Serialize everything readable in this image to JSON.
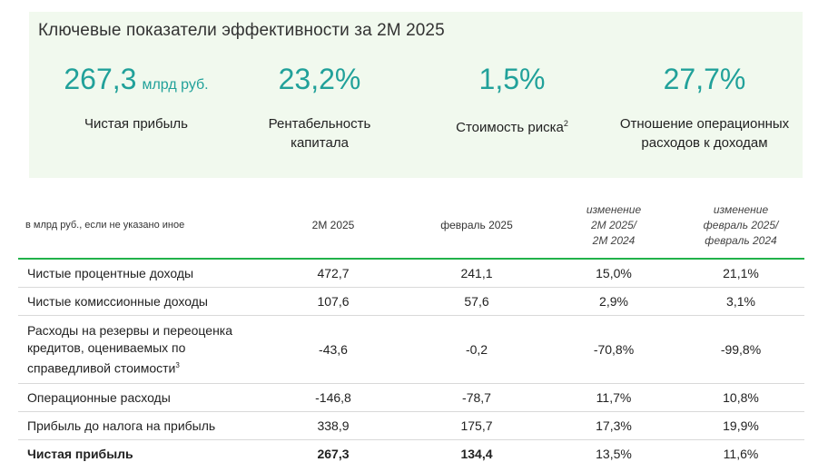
{
  "kpi_panel": {
    "title": "Ключевые показатели эффективности за 2М 2025",
    "items": [
      {
        "value": "267,3",
        "unit": "млрд руб.",
        "label": "Чистая прибыль"
      },
      {
        "value": "23,2%",
        "unit": "",
        "label": "Рентабельность\nкапитала"
      },
      {
        "value": "1,5%",
        "unit": "",
        "label": "Стоимость риска",
        "sup": "2"
      },
      {
        "value": "27,7%",
        "unit": "",
        "label": "Отношение операционных\nрасходов к доходам"
      }
    ]
  },
  "table": {
    "header": {
      "note": "в млрд руб., если не указано иное",
      "col1": "2М 2025",
      "col2": "февраль 2025",
      "col3": "изменение\n2М 2025/\n2М 2024",
      "col4": "изменение\nфевраль 2025/\nфевраль 2024"
    },
    "rows": [
      {
        "label": "Чистые процентные доходы",
        "v1": "472,7",
        "v2": "241,1",
        "c1": "15,0%",
        "c2": "21,1%"
      },
      {
        "label": "Чистые комиссионные доходы",
        "v1": "107,6",
        "v2": "57,6",
        "c1": "2,9%",
        "c2": "3,1%"
      },
      {
        "label": "Расходы на резервы и переоценка кредитов, оцениваемых по справедливой стоимости",
        "sup": "3",
        "v1": "-43,6",
        "v2": "-0,2",
        "c1": "-70,8%",
        "c2": "-99,8%"
      },
      {
        "label": "Операционные расходы",
        "v1": "-146,8",
        "v2": "-78,7",
        "c1": "11,7%",
        "c2": "10,8%"
      },
      {
        "label": "Прибыль до налога на прибыль",
        "v1": "338,9",
        "v2": "175,7",
        "c1": "17,3%",
        "c2": "19,9%"
      },
      {
        "label": "Чистая прибыль",
        "v1": "267,3",
        "v2": "134,4",
        "c1": "13,5%",
        "c2": "11,6%"
      }
    ]
  }
}
